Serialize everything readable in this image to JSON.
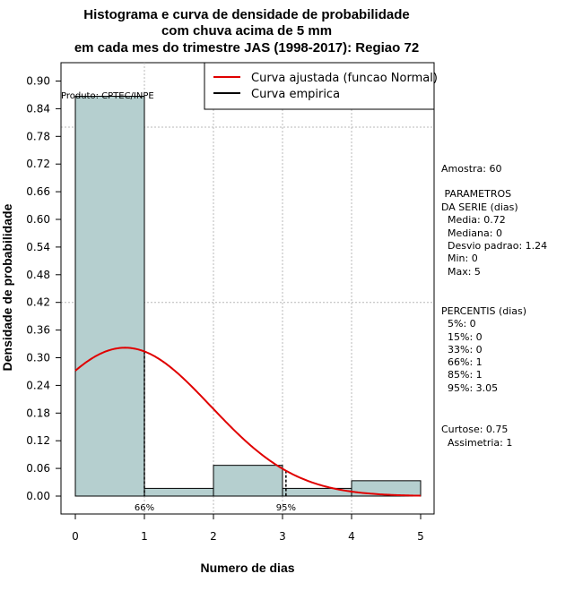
{
  "chart_data": {
    "type": "bar",
    "title_lines": [
      "Histograma e curva de densidade de probabilidade",
      "com chuva acima de 5 mm",
      "em cada mes do trimestre JAS (1998-2017): Regiao 72"
    ],
    "xlabel": "Numero de dias",
    "ylabel": "Densidade de probabilidade",
    "xlim": [
      0,
      5
    ],
    "ylim": [
      0,
      0.9
    ],
    "x_ticks": [
      "0",
      "1",
      "2",
      "3",
      "4",
      "5"
    ],
    "y_ticks": [
      "0.00",
      "0.06",
      "0.12",
      "0.18",
      "0.24",
      "0.30",
      "0.36",
      "0.42",
      "0.48",
      "0.54",
      "0.60",
      "0.66",
      "0.72",
      "0.78",
      "0.84",
      "0.90"
    ],
    "bins": [
      {
        "x0": 0,
        "x1": 1,
        "density": 0.867
      },
      {
        "x0": 1,
        "x1": 2,
        "density": 0.0167
      },
      {
        "x0": 2,
        "x1": 3,
        "density": 0.0667
      },
      {
        "x0": 3,
        "x1": 4,
        "density": 0.0167
      },
      {
        "x0": 4,
        "x1": 5,
        "density": 0.0333
      }
    ],
    "bar_color": "#b5cfcf",
    "normal_curve": {
      "mean": 0.72,
      "sd": 1.24,
      "color": "#e00000"
    },
    "percentile_markers": [
      {
        "x": 1,
        "label": "66%"
      },
      {
        "x": 3.05,
        "label": "95%"
      }
    ],
    "legend": {
      "placement": "top-right",
      "entries": [
        {
          "label": "Curva ajustada (funcao Normal)",
          "color": "#e00000"
        },
        {
          "label": "Curva empirica",
          "color": "#000000"
        }
      ]
    },
    "product_label": "Produto: CPTEC/INPE",
    "horizontal_grid_values": [
      0.42,
      0.8
    ],
    "vertical_grid_values": [
      1,
      2,
      3,
      4
    ],
    "stats_lines": [
      "Amostra: 60",
      " PARAMETROS",
      "DA SERIE (dias)",
      "  Media: 0.72",
      "  Mediana: 0",
      "  Desvio padrao: 1.24",
      "  Min: 0",
      "  Max: 5",
      "PERCENTIS (dias)",
      "  5%: 0",
      "  15%: 0",
      "  33%: 0",
      "  66%: 1",
      "  85%: 1",
      "  95%: 3.05",
      "Curtose: 0.75",
      "  Assimetria: 1"
    ]
  }
}
